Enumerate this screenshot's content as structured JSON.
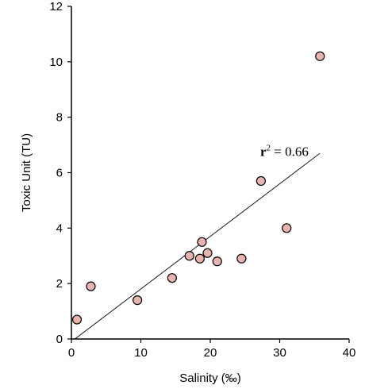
{
  "chart_data": {
    "type": "scatter",
    "xlabel": "Salinity (‰)",
    "ylabel": "Toxic Unit  (TU)",
    "xlim": [
      0,
      40
    ],
    "ylim": [
      0,
      12
    ],
    "xticks": [
      0,
      10,
      20,
      30,
      40
    ],
    "yticks": [
      0,
      2,
      4,
      6,
      8,
      10,
      12
    ],
    "grid": false,
    "marker_fill": "#e8b4b0",
    "marker_edge": "#000000",
    "points": [
      {
        "x": 0.8,
        "y": 0.7
      },
      {
        "x": 2.8,
        "y": 1.9
      },
      {
        "x": 9.5,
        "y": 1.4
      },
      {
        "x": 14.5,
        "y": 2.2
      },
      {
        "x": 17.0,
        "y": 3.0
      },
      {
        "x": 18.5,
        "y": 2.9
      },
      {
        "x": 18.8,
        "y": 3.5
      },
      {
        "x": 19.6,
        "y": 3.1
      },
      {
        "x": 21.0,
        "y": 2.8
      },
      {
        "x": 24.5,
        "y": 2.9
      },
      {
        "x": 27.3,
        "y": 5.7
      },
      {
        "x": 31.0,
        "y": 4.0
      },
      {
        "x": 35.8,
        "y": 10.2
      }
    ],
    "fit_line": {
      "x1": 0.5,
      "y1": 0.0,
      "x2": 35.8,
      "y2": 6.7
    },
    "annotation": {
      "prefix": "r",
      "sup": "2",
      "suffix": " = 0.66",
      "x": 27.2,
      "y": 6.6
    }
  }
}
